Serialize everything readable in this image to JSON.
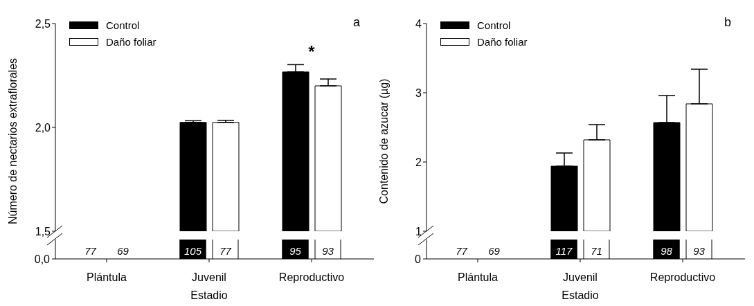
{
  "chart_data": [
    {
      "type": "bar",
      "title": "a",
      "xlabel": "Estadio",
      "ylabel": "Número de nectarios extraflorales",
      "categories": [
        "Plántula",
        "Juvenil",
        "Reproductivo"
      ],
      "series": [
        {
          "name": "Control",
          "color": "#000000",
          "values": [
            null,
            2.024,
            2.267
          ],
          "errors": [
            null,
            0.008,
            0.035
          ]
        },
        {
          "name": "Daño foliar",
          "color": "#ffffff",
          "values": [
            null,
            2.024,
            2.2
          ],
          "errors": [
            null,
            0.01,
            0.033
          ]
        }
      ],
      "ylim": [
        1.5,
        2.5
      ],
      "yticks": [
        {
          "value": 1.5,
          "label": "1,5"
        },
        {
          "value": 2.0,
          "label": "2,0"
        },
        {
          "value": 2.5,
          "label": "2,5"
        }
      ],
      "legend": "top left",
      "annotations": [
        "0,0",
        "77",
        "69",
        "105",
        "77",
        "95",
        "93",
        "*"
      ]
    },
    {
      "type": "bar",
      "title": "b",
      "xlabel": "Estadio",
      "ylabel": "Contenido de azucar (µg)",
      "categories": [
        "Plántula",
        "Juvenil",
        "Reproductivo"
      ],
      "series": [
        {
          "name": "Control",
          "color": "#000000",
          "values": [
            null,
            1.94,
            2.57
          ],
          "errors": [
            null,
            0.19,
            0.39
          ]
        },
        {
          "name": "Daño foliar",
          "color": "#ffffff",
          "values": [
            null,
            2.32,
            2.84
          ],
          "errors": [
            null,
            0.22,
            0.5
          ]
        }
      ],
      "ylim": [
        1,
        4
      ],
      "yticks": [
        1,
        2,
        3,
        4
      ],
      "legend": "top left",
      "annotations": [
        "0",
        "77",
        "69",
        "117",
        "71",
        "98",
        "93"
      ]
    }
  ]
}
